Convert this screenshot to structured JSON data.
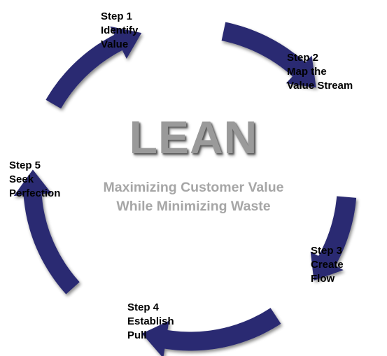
{
  "diagram": {
    "title": "LEAN",
    "subtitle_lines": [
      "Maximizing Customer Value",
      "While Minimizing Waste"
    ],
    "arrow_color": "#2b2c72",
    "steps": [
      {
        "lines": [
          "Step 1",
          "Identify",
          "Value"
        ]
      },
      {
        "lines": [
          "Step 2",
          "Map the",
          "Value Stream"
        ]
      },
      {
        "lines": [
          "Step 3",
          "Create",
          "Flow"
        ]
      },
      {
        "lines": [
          "Step 4",
          "Establish",
          "Pull"
        ]
      },
      {
        "lines": [
          "Step 5",
          "Seek",
          "Perfection"
        ]
      }
    ]
  }
}
